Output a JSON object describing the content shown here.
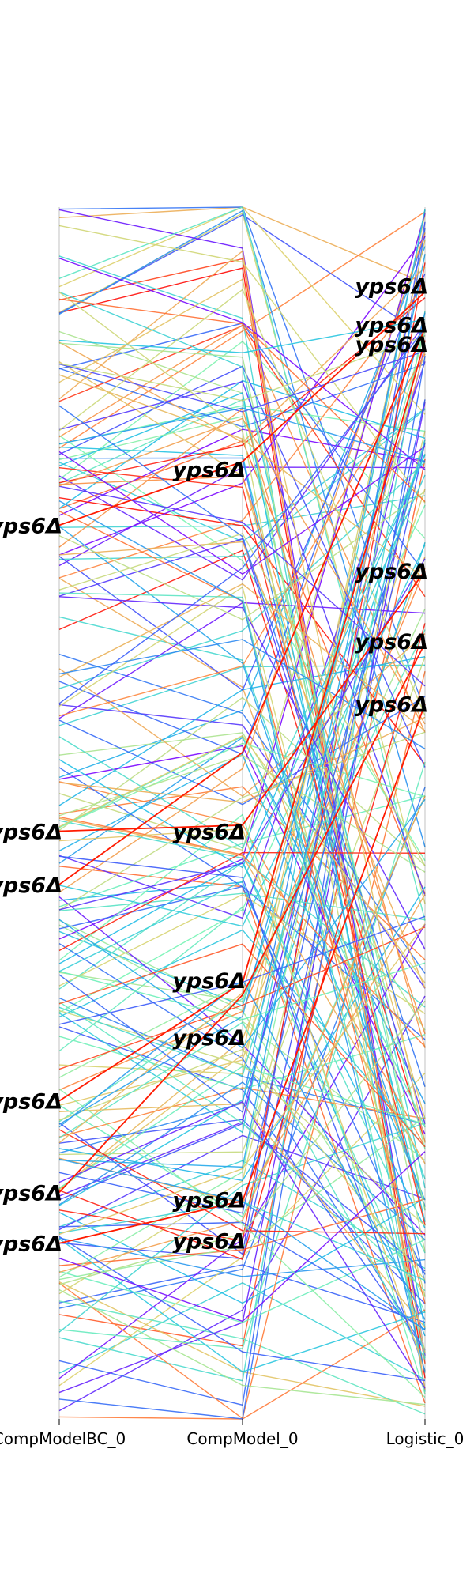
{
  "chart_data": {
    "type": "line",
    "subtype": "parallel-coordinates",
    "axes": [
      "CompModelBC_0",
      "CompModel_0",
      "Logistic_0"
    ],
    "value_range": [
      0,
      1
    ],
    "colormap": "rainbow",
    "num_lines": 220,
    "annotation_label": "yps6Δ",
    "annotations": {
      "CompModelBC_0": [
        0.7375,
        0.485,
        0.441,
        0.2625,
        0.187,
        0.145
      ],
      "CompModel_0": [
        0.7837,
        0.485,
        0.362,
        0.315,
        0.181,
        0.147
      ],
      "Logistic_0": [
        0.935,
        0.903,
        0.887,
        0.7,
        0.642,
        0.59
      ]
    },
    "highlighted_lines": [
      [
        0.7375,
        0.79,
        0.93
      ],
      [
        0.485,
        0.49,
        0.7
      ],
      [
        0.441,
        0.55,
        0.9
      ],
      [
        0.2625,
        0.36,
        0.89
      ],
      [
        0.187,
        0.35,
        0.64
      ],
      [
        0.145,
        0.18,
        0.59
      ]
    ]
  }
}
